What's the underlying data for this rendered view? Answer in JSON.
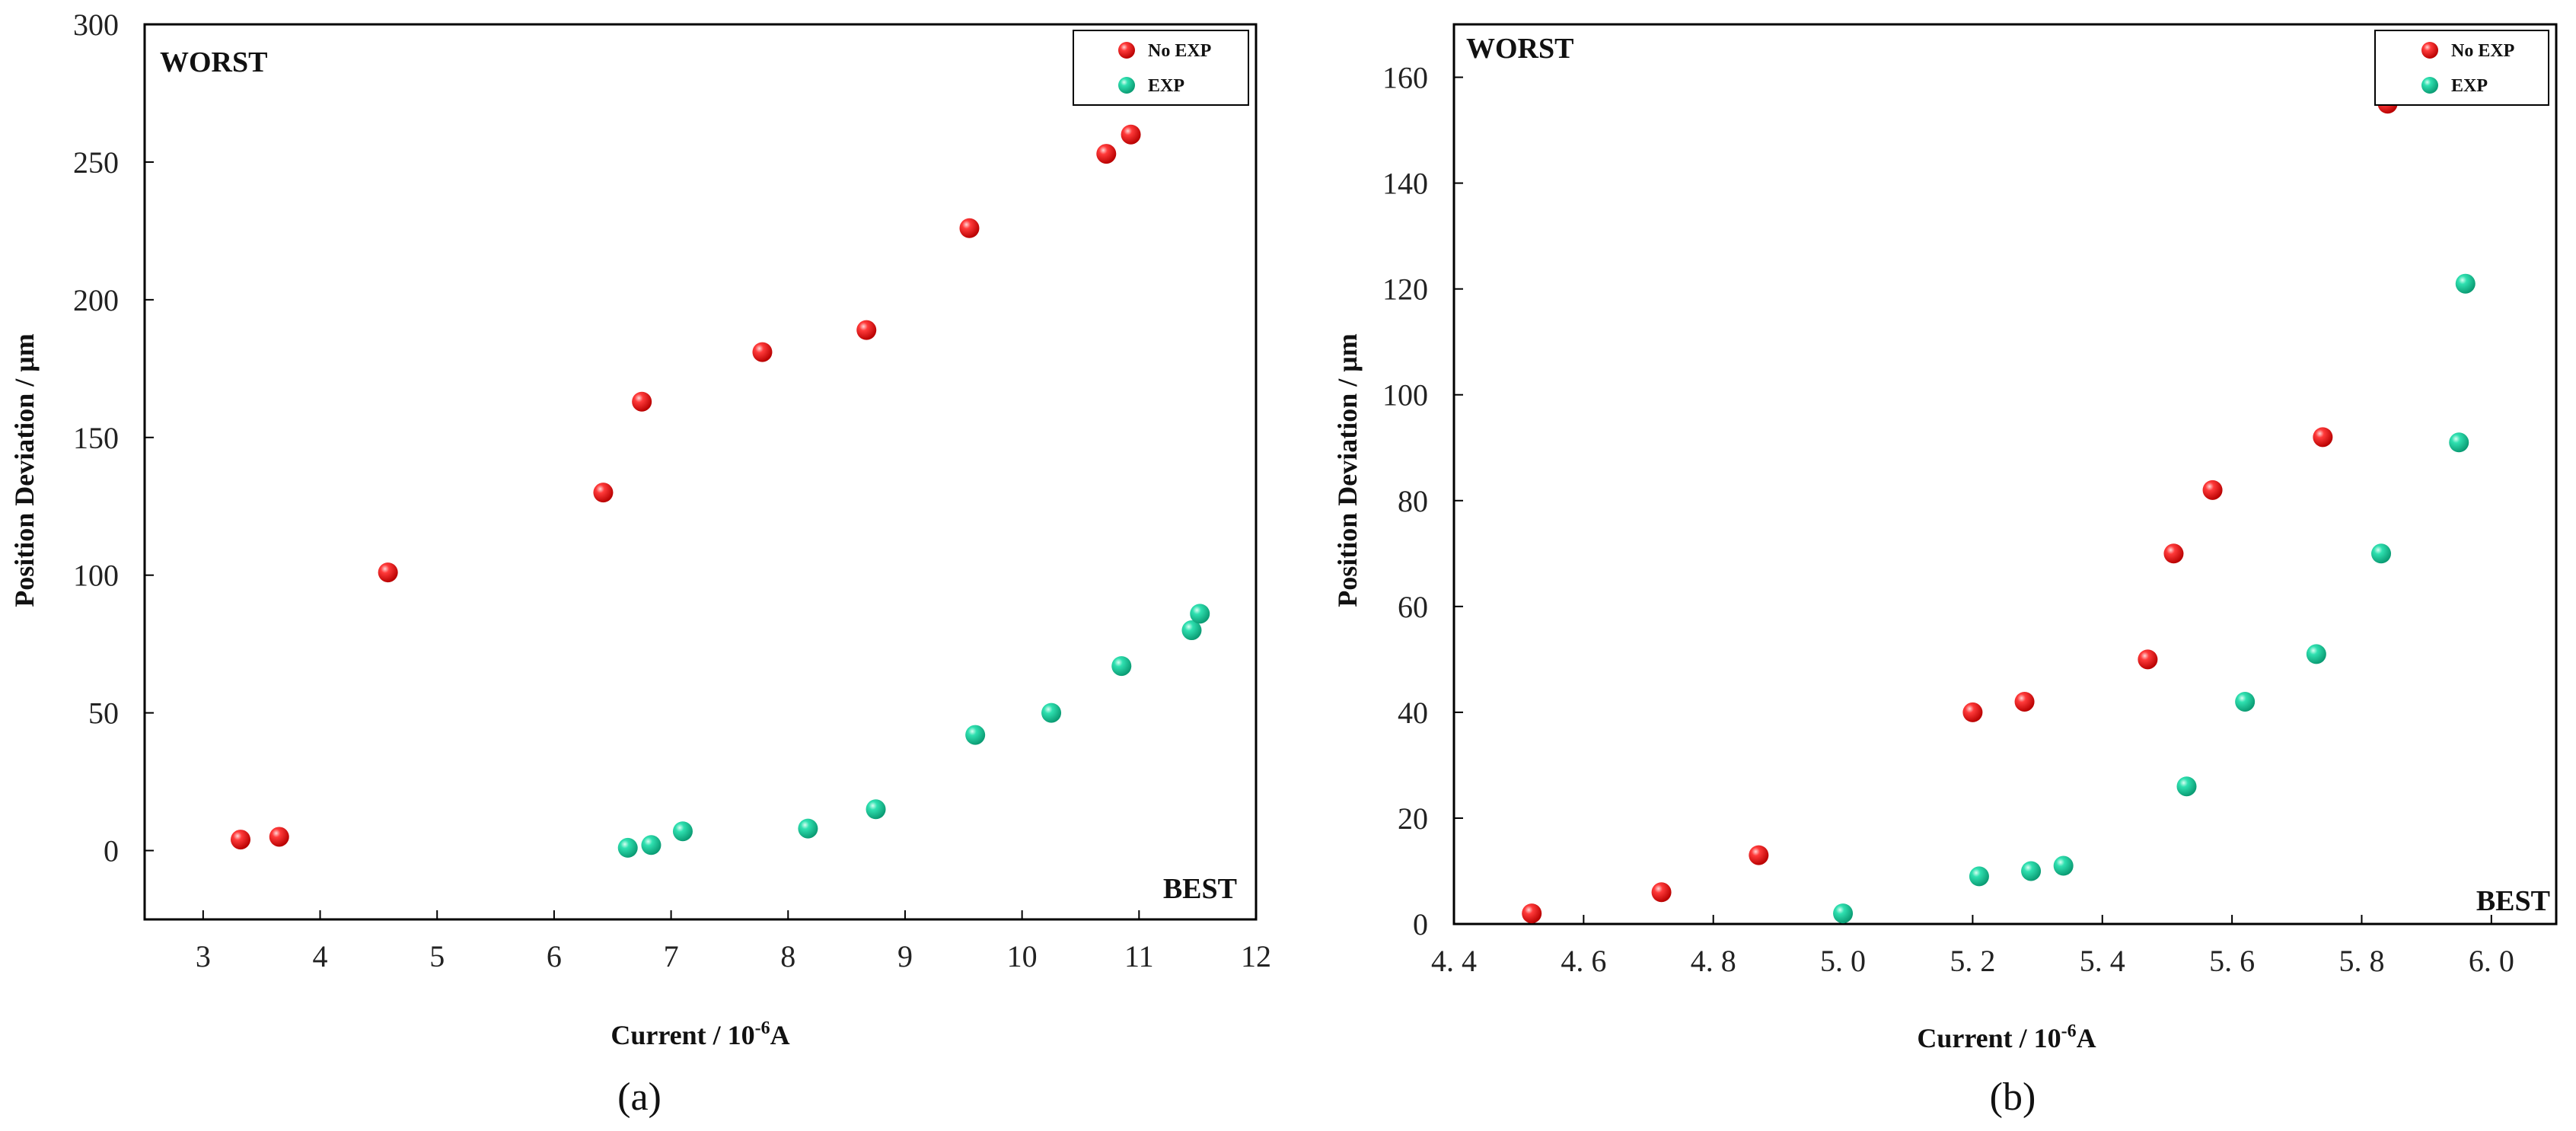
{
  "colors": {
    "no_exp": "#ee1c1c",
    "exp": "#19d1a0",
    "axis": "#000000"
  },
  "chart_data": [
    {
      "type": "scatter",
      "panel": "a",
      "caption": "(a)",
      "xlabel_main": "Current / 10",
      "xlabel_sup": "-6",
      "xlabel_unit": "A",
      "ylabel": "Position Deviation / μm",
      "xlim": [
        2.5,
        12
      ],
      "ylim": [
        -25,
        300
      ],
      "xticks": [
        3,
        4,
        5,
        6,
        7,
        8,
        9,
        10,
        11,
        12
      ],
      "xtick_labels": [
        "3",
        "4",
        "5",
        "6",
        "7",
        "8",
        "9",
        "10",
        "11",
        "12"
      ],
      "yticks": [
        0,
        50,
        100,
        150,
        200,
        250,
        300
      ],
      "ytick_labels": [
        "0",
        "50",
        "100",
        "150",
        "200",
        "250",
        "300"
      ],
      "annotations": {
        "top_left": "WORST",
        "bottom_right": "BEST"
      },
      "legend_position": "top-right",
      "series": [
        {
          "name": "No EXP",
          "color_key": "no_exp",
          "x": [
            3.32,
            3.65,
            4.58,
            6.42,
            6.75,
            7.78,
            8.67,
            9.55,
            10.72,
            10.93
          ],
          "y": [
            4,
            5,
            101,
            130,
            163,
            181,
            189,
            226,
            253,
            260
          ]
        },
        {
          "name": "EXP",
          "color_key": "exp",
          "x": [
            6.63,
            6.83,
            7.1,
            8.17,
            8.75,
            9.6,
            10.25,
            10.85,
            11.45,
            11.52
          ],
          "y": [
            1,
            2,
            7,
            8,
            15,
            42,
            50,
            67,
            80,
            86
          ]
        }
      ]
    },
    {
      "type": "scatter",
      "panel": "b",
      "caption": "(b)",
      "xlabel_main": "Current / 10",
      "xlabel_sup": "-6",
      "xlabel_unit": "A",
      "ylabel": "Position Deviation / μm",
      "xlim": [
        4.4,
        6.1
      ],
      "ylim": [
        0,
        170
      ],
      "xticks": [
        4.4,
        4.6,
        4.8,
        5.0,
        5.2,
        5.4,
        5.6,
        5.8,
        6.0
      ],
      "xtick_labels": [
        "4. 4",
        "4. 6",
        "4. 8",
        "5. 0",
        "5. 2",
        "5. 4",
        "5. 6",
        "5. 8",
        "6. 0"
      ],
      "yticks": [
        0,
        20,
        40,
        60,
        80,
        100,
        120,
        140,
        160
      ],
      "ytick_labels": [
        "0",
        "20",
        "40",
        "60",
        "80",
        "100",
        "120",
        "140",
        "160"
      ],
      "annotations": {
        "top_left": "WORST",
        "bottom_right": "BEST"
      },
      "legend_position": "top-right",
      "series": [
        {
          "name": "No EXP",
          "color_key": "no_exp",
          "x": [
            4.52,
            4.72,
            4.87,
            5.2,
            5.28,
            5.47,
            5.51,
            5.57,
            5.74,
            5.84
          ],
          "y": [
            2,
            6,
            13,
            40,
            42,
            50,
            70,
            82,
            92,
            155
          ]
        },
        {
          "name": "EXP",
          "color_key": "exp",
          "x": [
            5.0,
            5.21,
            5.29,
            5.34,
            5.53,
            5.62,
            5.73,
            5.83,
            5.95,
            5.96
          ],
          "y": [
            2,
            9,
            10,
            11,
            26,
            42,
            51,
            70,
            91,
            121
          ]
        }
      ]
    }
  ]
}
